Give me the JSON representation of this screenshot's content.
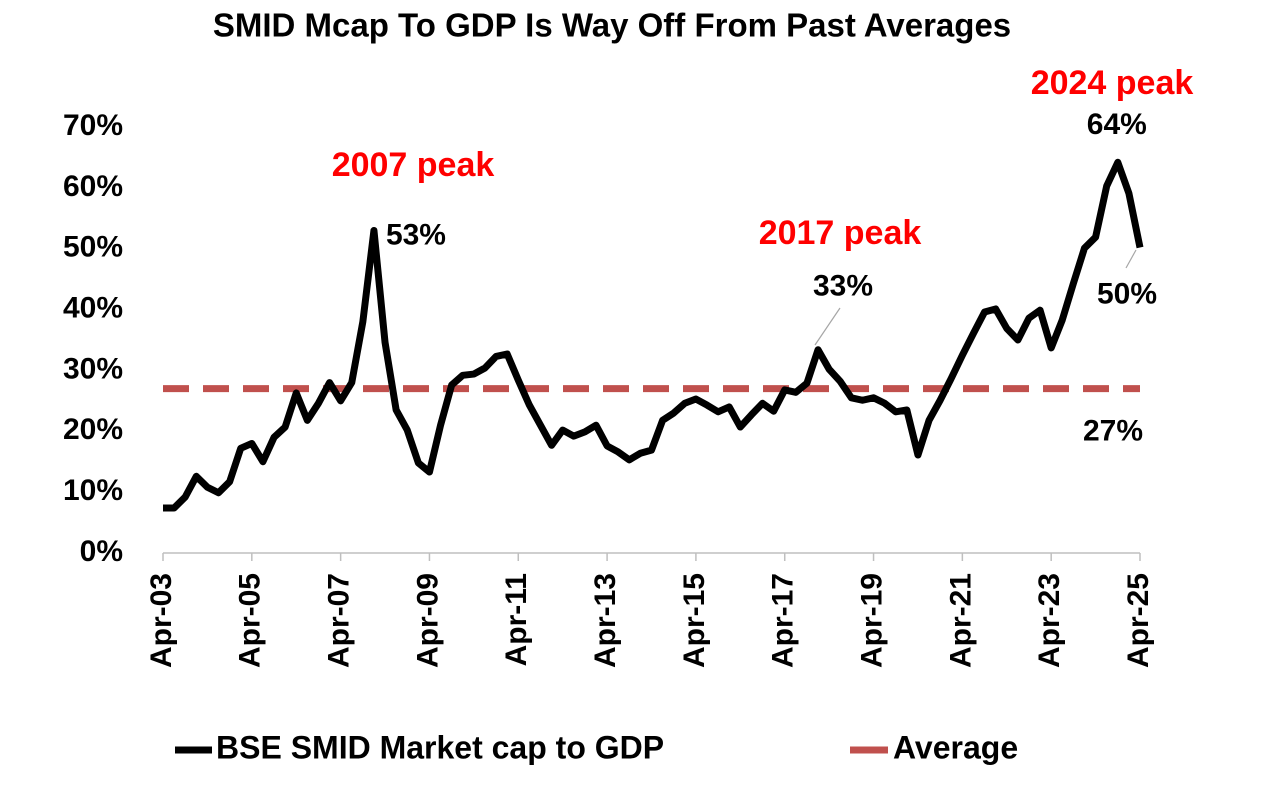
{
  "chart_data": {
    "type": "line",
    "title": "SMID Mcap To GDP Is Way Off From Past Averages",
    "categories": [
      "Apr-03",
      null,
      null,
      null,
      null,
      null,
      null,
      null,
      "Apr-05",
      null,
      null,
      null,
      null,
      null,
      null,
      null,
      "Apr-07",
      null,
      null,
      null,
      null,
      null,
      null,
      null,
      "Apr-09",
      null,
      null,
      null,
      null,
      null,
      null,
      null,
      "Apr-11",
      null,
      null,
      null,
      null,
      null,
      null,
      null,
      "Apr-13",
      null,
      null,
      null,
      null,
      null,
      null,
      null,
      "Apr-15",
      null,
      null,
      null,
      null,
      null,
      null,
      null,
      "Apr-17",
      null,
      null,
      null,
      null,
      null,
      null,
      null,
      "Apr-19",
      null,
      null,
      null,
      null,
      null,
      null,
      null,
      "Apr-21",
      null,
      null,
      null,
      null,
      null,
      null,
      null,
      "Apr-23",
      null,
      null,
      null,
      null,
      null,
      null,
      null,
      "Apr-25"
    ],
    "series": [
      {
        "name": "BSE SMID Market cap to GDP",
        "color": "#000000",
        "values": [
          7.4,
          7.4,
          9.2,
          12.6,
          10.8,
          9.9,
          11.7,
          17.2,
          18,
          15,
          19,
          20.7,
          26.3,
          21.8,
          24.6,
          28,
          25,
          28,
          38,
          53,
          34.6,
          23.5,
          20.2,
          14.8,
          13.3,
          21,
          27.6,
          29.2,
          29.4,
          30.4,
          32.3,
          32.7,
          28.4,
          24.3,
          21,
          17.7,
          20.2,
          19.2,
          19.9,
          21,
          17.6,
          16.6,
          15.3,
          16.4,
          16.9,
          21.8,
          23,
          24.6,
          25.3,
          24.3,
          23.2,
          24,
          20.7,
          22.7,
          24.6,
          23.3,
          26.8,
          26.4,
          27.9,
          33.4,
          30.2,
          28.2,
          25.5,
          25.1,
          25.5,
          24.6,
          23.2,
          23.5,
          16.1,
          21.8,
          25.1,
          28.7,
          32.5,
          36.1,
          39.6,
          40.1,
          36.9,
          35,
          38.6,
          39.9,
          33.7,
          38.3,
          44.3,
          50.1,
          51.9,
          60.3,
          64.2,
          59.1,
          50.2
        ],
        "value_labels": [
          null,
          null,
          null,
          null,
          null,
          null,
          null,
          null,
          null,
          null,
          null,
          null,
          null,
          null,
          null,
          null,
          null,
          null,
          null,
          "53%",
          null,
          null,
          null,
          null,
          null,
          null,
          null,
          null,
          null,
          null,
          null,
          null,
          null,
          null,
          null,
          null,
          null,
          null,
          null,
          null,
          null,
          null,
          null,
          null,
          null,
          null,
          null,
          null,
          null,
          null,
          null,
          null,
          null,
          null,
          null,
          null,
          null,
          null,
          null,
          "33%",
          null,
          null,
          null,
          null,
          null,
          null,
          null,
          null,
          null,
          null,
          null,
          null,
          null,
          null,
          null,
          null,
          null,
          null,
          null,
          null,
          null,
          null,
          null,
          null,
          null,
          null,
          "64%",
          null,
          "50%"
        ]
      }
    ],
    "reference_lines": [
      {
        "name": "Average",
        "value": 27,
        "value_label": "27%",
        "color": "#c0504d",
        "dashed": true
      }
    ],
    "annotations": [
      {
        "text": "2007 peak"
      },
      {
        "text": "2017 peak"
      },
      {
        "text": "2024 peak"
      }
    ],
    "annotation_color": "#ff0000",
    "ylim": [
      0,
      70
    ],
    "yticks": [
      {
        "value": 0,
        "label": "0%"
      },
      {
        "value": 10,
        "label": "10%"
      },
      {
        "value": 20,
        "label": "20%"
      },
      {
        "value": 30,
        "label": "30%"
      },
      {
        "value": 40,
        "label": "40%"
      },
      {
        "value": 50,
        "label": "50%"
      },
      {
        "value": 60,
        "label": "60%"
      },
      {
        "value": 70,
        "label": "70%"
      }
    ],
    "grid": false,
    "legend": "bottom"
  }
}
